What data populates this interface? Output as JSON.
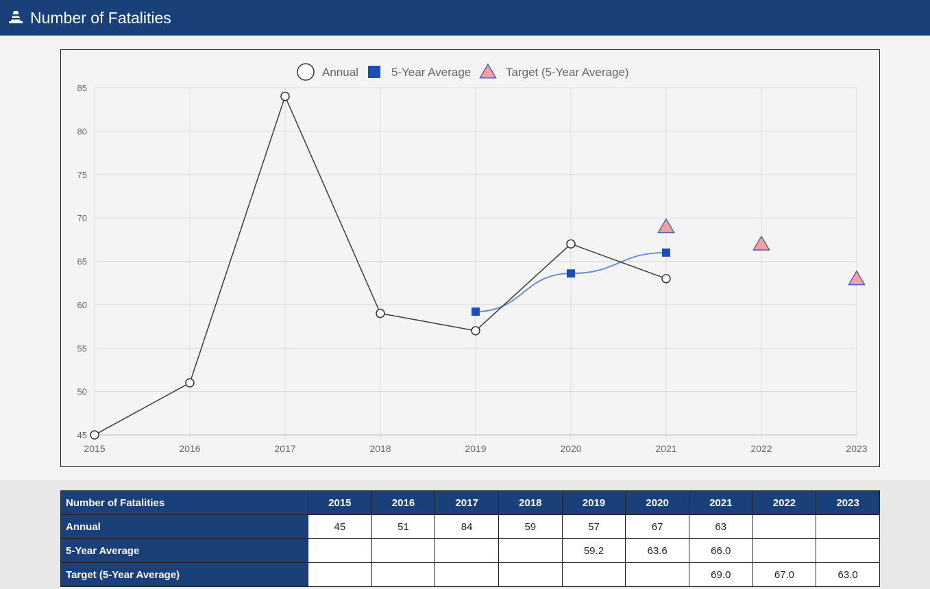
{
  "header": {
    "title": "Number of Fatalities",
    "icon": "traffic-cone-icon"
  },
  "colors": {
    "header_bg": "#1a4079",
    "annual_line": "#444444",
    "avg_marker": "#1e4db7",
    "avg_line": "#6b8fd6",
    "target_fill": "#f4a0a0",
    "target_stroke": "#5a5fb3"
  },
  "chart_data": {
    "type": "line",
    "categories": [
      "2015",
      "2016",
      "2017",
      "2018",
      "2019",
      "2020",
      "2021",
      "2022",
      "2023"
    ],
    "ylim": [
      45,
      85
    ],
    "yticks": [
      45,
      50,
      55,
      60,
      65,
      70,
      75,
      80,
      85
    ],
    "grid": true,
    "legend_position": "top-center",
    "series": [
      {
        "name": "Annual",
        "values": [
          45,
          51,
          84,
          59,
          57,
          67,
          63,
          null,
          null
        ]
      },
      {
        "name": "5-Year Average",
        "values": [
          null,
          null,
          null,
          null,
          59.2,
          63.6,
          66.0,
          null,
          null
        ]
      },
      {
        "name": "Target (5-Year Average)",
        "values": [
          null,
          null,
          null,
          null,
          null,
          null,
          69.0,
          67.0,
          63.0
        ]
      }
    ]
  },
  "table": {
    "corner": "Number of Fatalities",
    "years": [
      "2015",
      "2016",
      "2017",
      "2018",
      "2019",
      "2020",
      "2021",
      "2022",
      "2023"
    ],
    "rows": [
      {
        "label": "Annual",
        "cells": [
          "45",
          "51",
          "84",
          "59",
          "57",
          "67",
          "63",
          "",
          ""
        ]
      },
      {
        "label": "5-Year Average",
        "cells": [
          "",
          "",
          "",
          "",
          "59.2",
          "63.6",
          "66.0",
          "",
          ""
        ]
      },
      {
        "label": "Target (5-Year Average)",
        "cells": [
          "",
          "",
          "",
          "",
          "",
          "",
          "69.0",
          "67.0",
          "63.0"
        ]
      }
    ]
  }
}
